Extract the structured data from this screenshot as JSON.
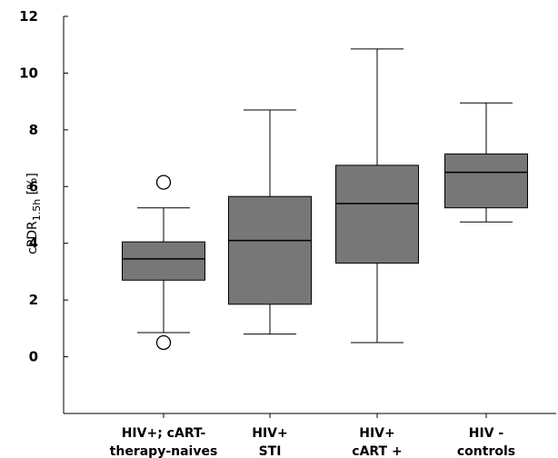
{
  "chart_data": {
    "type": "box",
    "xlabel": "",
    "ylabel": {
      "main": "cPDR",
      "sub": "1.5h",
      "unit": " [%]"
    },
    "ylim": [
      -2,
      12
    ],
    "yticks": [
      0,
      2,
      4,
      6,
      8,
      10,
      12
    ],
    "grid": false,
    "legend": "none",
    "box_color": "#777777",
    "categories": [
      {
        "lines": [
          "HIV+; cART-",
          "therapy-naives"
        ]
      },
      {
        "lines": [
          "HIV+",
          "STI"
        ]
      },
      {
        "lines": [
          "HIV+",
          "cART +"
        ]
      },
      {
        "lines": [
          "HIV -",
          "controls"
        ]
      }
    ],
    "boxes": [
      {
        "whisker_low": 0.85,
        "q1": 2.7,
        "median": 3.45,
        "q3": 4.05,
        "whisker_high": 5.25,
        "outliers": [
          6.15,
          0.5
        ]
      },
      {
        "whisker_low": 0.8,
        "q1": 1.85,
        "median": 4.1,
        "q3": 5.65,
        "whisker_high": 8.7,
        "outliers": []
      },
      {
        "whisker_low": 0.5,
        "q1": 3.3,
        "median": 5.4,
        "q3": 6.75,
        "whisker_high": 10.85,
        "outliers": []
      },
      {
        "whisker_low": 4.75,
        "q1": 5.25,
        "median": 6.5,
        "q3": 7.15,
        "whisker_high": 8.95,
        "outliers": []
      }
    ]
  }
}
